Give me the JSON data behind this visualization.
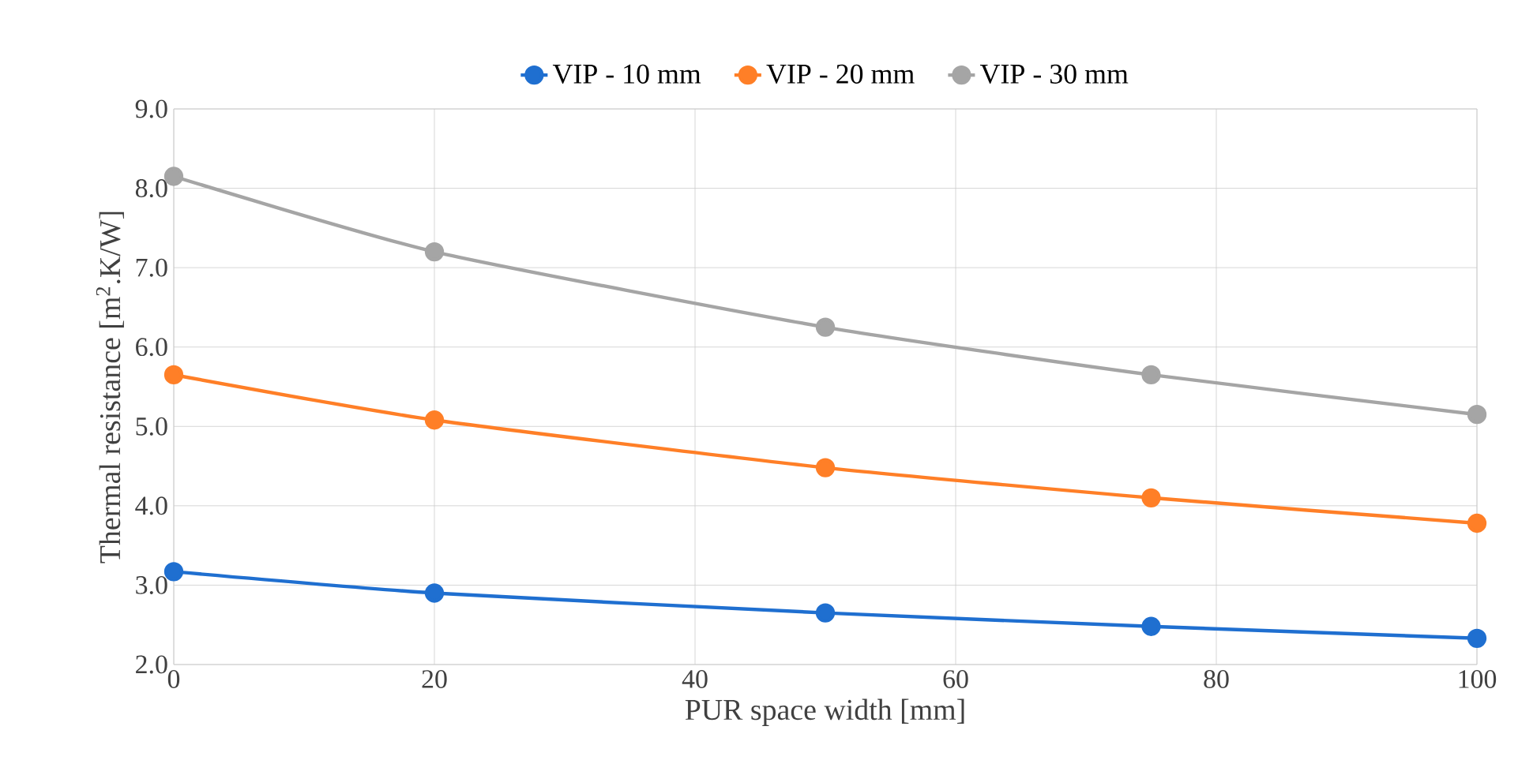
{
  "chart_data": {
    "type": "line",
    "xlabel": "PUR space width [mm]",
    "ylabel": "Thermal resistance [m$^{2}$.K/W]",
    "x": [
      0,
      20,
      50,
      75,
      100
    ],
    "series": [
      {
        "name": "VIP - 10 mm",
        "color": "#1f6fd0",
        "values": [
          3.17,
          2.9,
          2.65,
          2.48,
          2.33
        ]
      },
      {
        "name": "VIP - 20 mm",
        "color": "#ff7f27",
        "values": [
          5.65,
          5.08,
          4.48,
          4.1,
          3.78
        ]
      },
      {
        "name": "VIP - 30 mm",
        "color": "#a5a5a5",
        "values": [
          8.15,
          7.2,
          6.25,
          5.65,
          5.15
        ]
      }
    ],
    "xlim": [
      0,
      100
    ],
    "xticks": [
      0,
      20,
      40,
      60,
      80,
      100
    ],
    "ylim": [
      2,
      9
    ],
    "yticks": [
      {
        "value": 2,
        "label": "2.0"
      },
      {
        "value": 3,
        "label": "3.0"
      },
      {
        "value": 4,
        "label": "4.0"
      },
      {
        "value": 5,
        "label": "5.0"
      },
      {
        "value": 6,
        "label": "6.0"
      },
      {
        "value": 7,
        "label": "7.0"
      },
      {
        "value": 8,
        "label": "8.0"
      },
      {
        "value": 9,
        "label": "9.0"
      }
    ],
    "grid": true,
    "legend": "top",
    "marker": "circle",
    "line_style": "solid"
  }
}
